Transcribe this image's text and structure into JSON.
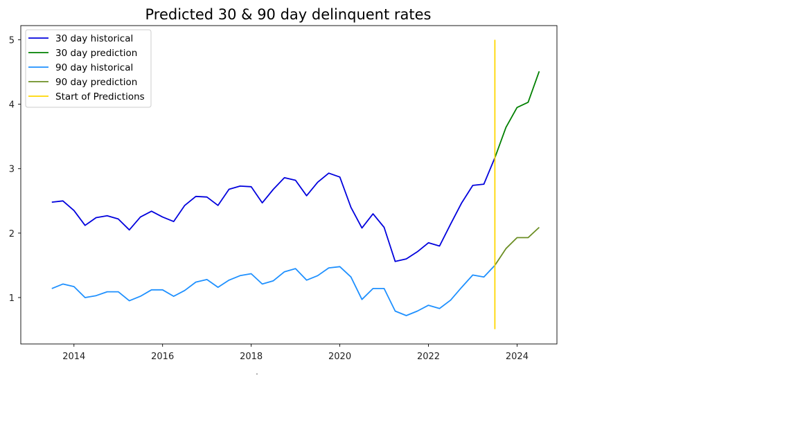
{
  "chart_data": {
    "type": "line",
    "title": "Predicted 30 & 90 day delinquent rates",
    "xlabel": "",
    "ylabel": "",
    "xlim": [
      2012.8,
      2024.9
    ],
    "ylim": [
      0.28,
      5.22
    ],
    "x_ticks": [
      2014,
      2016,
      2018,
      2020,
      2022,
      2024
    ],
    "y_ticks": [
      1,
      2,
      3,
      4,
      5
    ],
    "grid": false,
    "legend_position": "top-left",
    "footnote": ".",
    "series": [
      {
        "name": "30 day historical",
        "color": "#0000dd",
        "x": [
          2013.5,
          2013.75,
          2014,
          2014.25,
          2014.5,
          2014.75,
          2015,
          2015.25,
          2015.5,
          2015.75,
          2016,
          2016.25,
          2016.5,
          2016.75,
          2017,
          2017.25,
          2017.5,
          2017.75,
          2018,
          2018.25,
          2018.5,
          2018.75,
          2019,
          2019.25,
          2019.5,
          2019.75,
          2020,
          2020.25,
          2020.5,
          2020.75,
          2021,
          2021.25,
          2021.5,
          2021.75,
          2022,
          2022.25,
          2022.5,
          2022.75,
          2023,
          2023.25,
          2023.5
        ],
        "y": [
          2.48,
          2.5,
          2.35,
          2.12,
          2.24,
          2.27,
          2.22,
          2.05,
          2.25,
          2.34,
          2.25,
          2.18,
          2.43,
          2.57,
          2.56,
          2.43,
          2.68,
          2.73,
          2.72,
          2.47,
          2.68,
          2.86,
          2.82,
          2.58,
          2.79,
          2.93,
          2.87,
          2.4,
          2.08,
          2.3,
          2.09,
          1.56,
          1.6,
          1.71,
          1.85,
          1.8,
          2.14,
          2.47,
          2.74,
          2.76,
          3.17
        ]
      },
      {
        "name": "30 day prediction",
        "color": "#008000",
        "x": [
          2023.5,
          2023.75,
          2024,
          2024.25,
          2024.5
        ],
        "y": [
          3.17,
          3.64,
          3.95,
          4.03,
          4.51
        ]
      },
      {
        "name": "90 day historical",
        "color": "#1e90ff",
        "x": [
          2013.5,
          2013.75,
          2014,
          2014.25,
          2014.5,
          2014.75,
          2015,
          2015.25,
          2015.5,
          2015.75,
          2016,
          2016.25,
          2016.5,
          2016.75,
          2017,
          2017.25,
          2017.5,
          2017.75,
          2018,
          2018.25,
          2018.5,
          2018.75,
          2019,
          2019.25,
          2019.5,
          2019.75,
          2020,
          2020.25,
          2020.5,
          2020.75,
          2021,
          2021.25,
          2021.5,
          2021.75,
          2022,
          2022.25,
          2022.5,
          2022.75,
          2023,
          2023.25,
          2023.5
        ],
        "y": [
          1.14,
          1.21,
          1.17,
          1.0,
          1.03,
          1.09,
          1.09,
          0.95,
          1.02,
          1.12,
          1.12,
          1.02,
          1.11,
          1.24,
          1.28,
          1.16,
          1.27,
          1.34,
          1.37,
          1.21,
          1.26,
          1.4,
          1.45,
          1.27,
          1.34,
          1.46,
          1.48,
          1.32,
          0.97,
          1.14,
          1.14,
          0.79,
          0.72,
          0.79,
          0.88,
          0.83,
          0.96,
          1.16,
          1.35,
          1.32,
          1.5
        ]
      },
      {
        "name": "90 day prediction",
        "color": "#6b8e23",
        "x": [
          2023.5,
          2023.75,
          2024,
          2024.25,
          2024.5
        ],
        "y": [
          1.5,
          1.76,
          1.93,
          1.93,
          2.09
        ]
      },
      {
        "name": "Start of Predictions",
        "color": "#ffd700",
        "x": [
          2023.5,
          2023.5
        ],
        "y": [
          0.51,
          5.0
        ]
      }
    ]
  }
}
